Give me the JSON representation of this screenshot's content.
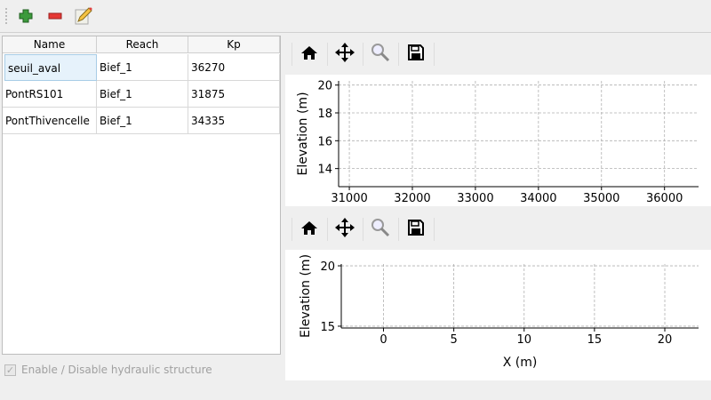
{
  "toolbar": {
    "add": "add-icon",
    "remove": "remove-icon",
    "edit": "edit-icon"
  },
  "table": {
    "headers": [
      "Name",
      "Reach",
      "Kp"
    ],
    "rows": [
      [
        "seuil_aval",
        "Bief_1",
        "36270"
      ],
      [
        "PontRS101",
        "Bief_1",
        "31875"
      ],
      [
        "PontThivencelle",
        "Bief_1",
        "34335"
      ]
    ]
  },
  "checkbox": {
    "label": "Enable / Disable hydraulic structure",
    "checked": true,
    "enabled": false
  },
  "plot_toolbar": [
    "home-icon",
    "pan-icon",
    "zoom-icon",
    "save-icon"
  ],
  "chart_data": [
    {
      "type": "line",
      "xlabel": "",
      "ylabel": "Elevation (m)",
      "xlim": [
        30830,
        36540
      ],
      "ylim": [
        12.7,
        20.3
      ],
      "xticks": [
        31000,
        32000,
        33000,
        34000,
        35000,
        36000
      ],
      "yticks": [
        14,
        16,
        18,
        20
      ],
      "grid": true,
      "series": []
    },
    {
      "type": "line",
      "xlabel": "X (m)",
      "ylabel": "Elevation (m)",
      "xlim": [
        -3,
        22.4
      ],
      "ylim": [
        14.85,
        20.15
      ],
      "xticks": [
        0,
        5,
        10,
        15,
        20
      ],
      "yticks": [
        15,
        20
      ],
      "grid": true,
      "series": []
    }
  ]
}
